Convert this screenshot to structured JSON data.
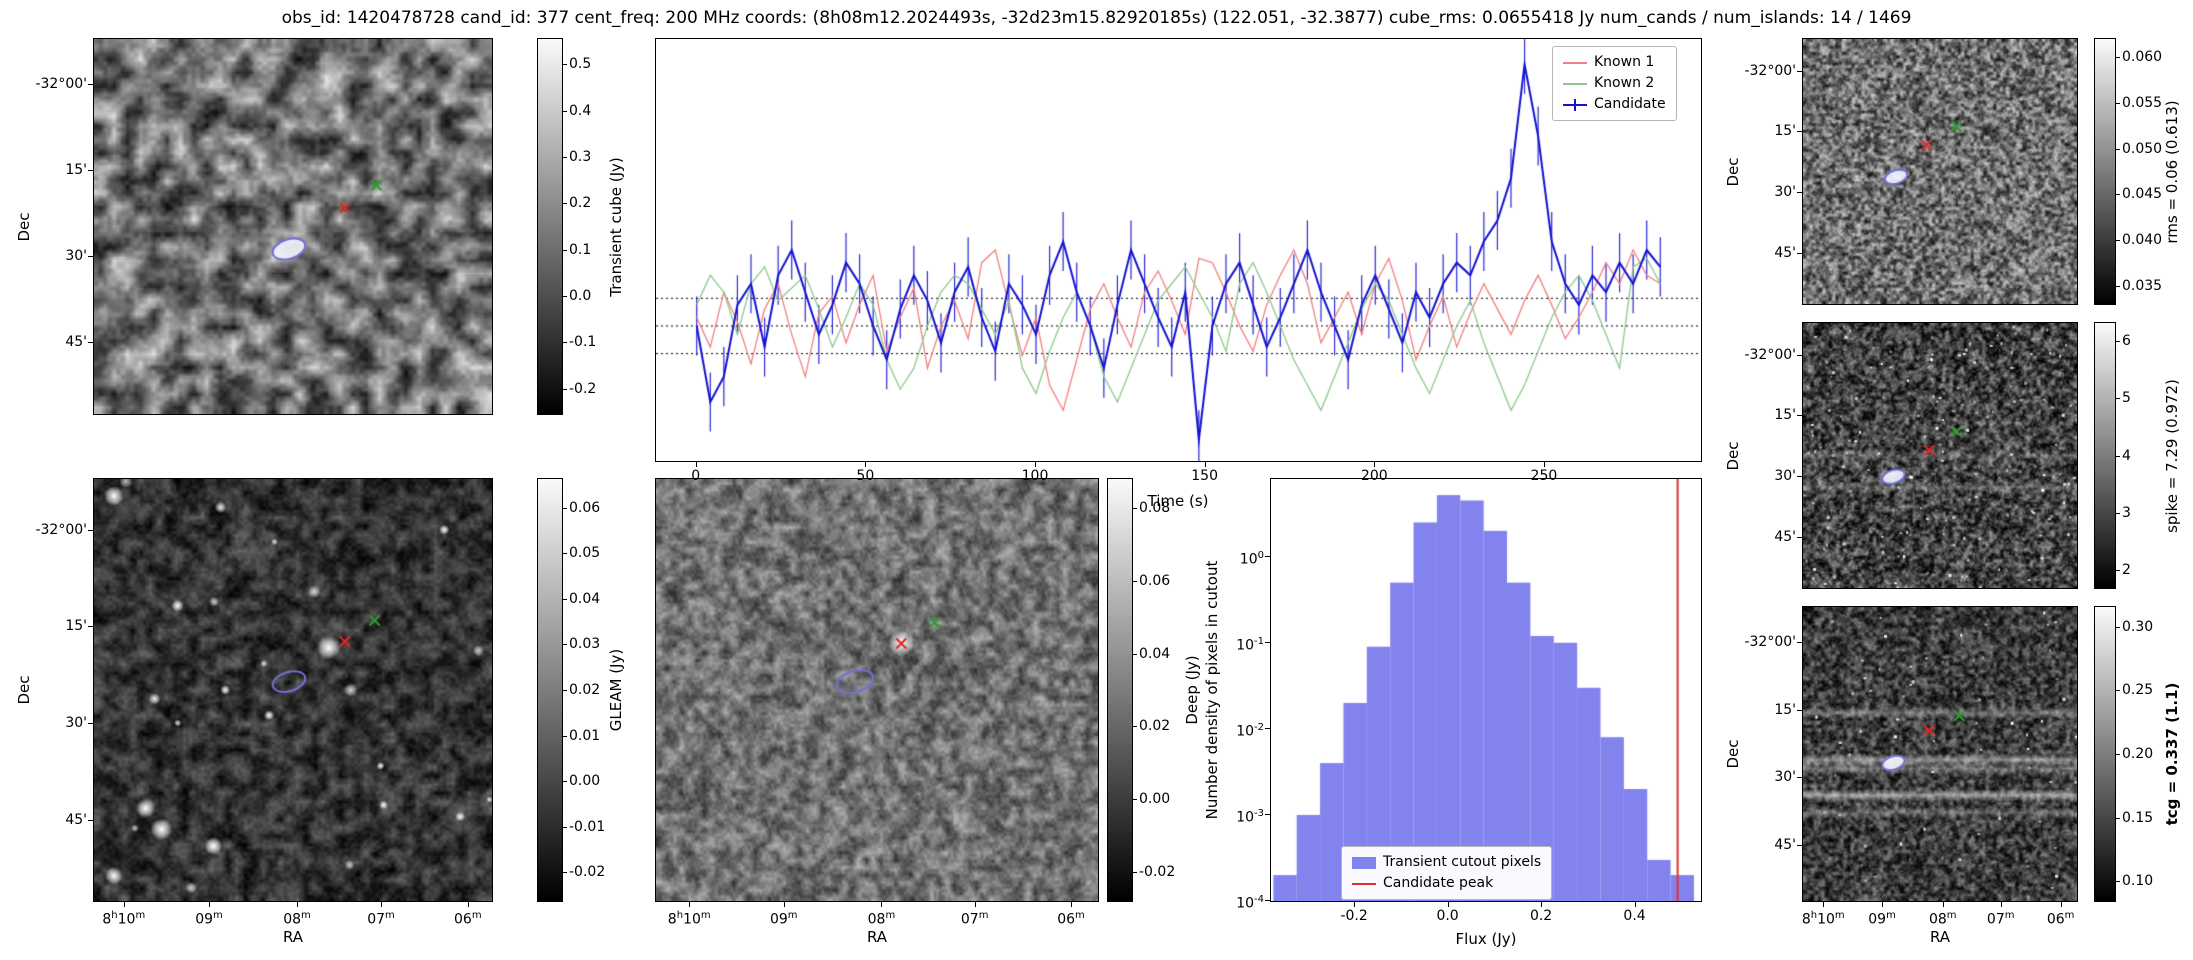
{
  "title": "obs_id: 1420478728 cand_id: 377 cent_freq: 200 MHz coords: (8h08m12.2024493s, -32d23m15.82920185s) (122.051, -32.3877) cube_rms: 0.0655418 Jy num_cands / num_islands: 14 / 1469",
  "axes": {
    "dec_label": "Dec",
    "ra_label": "RA",
    "dec_ticks": [
      "-32°00'",
      "15'",
      "30'",
      "45'"
    ],
    "ra_ticks": [
      "8^h10^m",
      "09^m",
      "08^m",
      "07^m",
      "06^m"
    ]
  },
  "panels": {
    "transient": {
      "colorbar_label": "Transient cube (Jy)",
      "colorbar_ticks": [
        "0.5",
        "0.4",
        "0.3",
        "0.2",
        "0.1",
        "0.0",
        "-0.1",
        "-0.2"
      ],
      "markers": {
        "red_cross": [
          0.63,
          0.45
        ],
        "green_cross": [
          0.71,
          0.39
        ],
        "ellipse": [
          0.49,
          0.56
        ]
      }
    },
    "gleam": {
      "colorbar_label": "GLEAM (Jy)",
      "colorbar_ticks": [
        "0.06",
        "0.05",
        "0.04",
        "0.03",
        "0.02",
        "0.01",
        "0.00",
        "-0.01",
        "-0.02"
      ],
      "markers": {
        "red_cross": [
          0.63,
          0.385
        ],
        "green_cross": [
          0.705,
          0.335
        ],
        "ellipse": [
          0.49,
          0.48
        ]
      }
    },
    "deep": {
      "colorbar_label": "Deep (Jy)",
      "colorbar_ticks": [
        "0.08",
        "0.06",
        "0.04",
        "0.02",
        "0.00",
        "-0.02"
      ],
      "markers": {
        "red_cross": [
          0.555,
          0.39
        ],
        "green_cross": [
          0.63,
          0.34
        ],
        "ellipse": [
          0.45,
          0.48
        ]
      }
    },
    "rms": {
      "colorbar_label": "rms = 0.06 (0.613)",
      "colorbar_ticks": [
        "0.060",
        "0.055",
        "0.050",
        "0.045",
        "0.040",
        "0.035"
      ],
      "markers": {
        "red_cross": [
          0.45,
          0.4
        ],
        "green_cross": [
          0.56,
          0.33
        ],
        "ellipse": [
          0.34,
          0.52
        ]
      }
    },
    "spike": {
      "colorbar_label": "spike = 7.29 (0.972)",
      "colorbar_ticks": [
        "6",
        "5",
        "4",
        "3",
        "2"
      ],
      "markers": {
        "red_cross": [
          0.46,
          0.48
        ],
        "green_cross": [
          0.56,
          0.41
        ],
        "ellipse": [
          0.33,
          0.58
        ]
      }
    },
    "tcg": {
      "colorbar_label": "tcg = 0.337 (1.1)",
      "bold": true,
      "colorbar_ticks": [
        "0.30",
        "0.25",
        "0.20",
        "0.15",
        "0.10"
      ],
      "markers": {
        "red_cross": [
          0.46,
          0.42
        ],
        "green_cross": [
          0.57,
          0.37
        ],
        "ellipse": [
          0.33,
          0.53
        ]
      }
    }
  },
  "chart_data": [
    {
      "type": "line",
      "title": "",
      "xlabel": "Time (s)",
      "ylabel": "",
      "xlim": [
        -12,
        296
      ],
      "ylim": [
        -0.32,
        0.68
      ],
      "xticks": [
        0,
        50,
        100,
        150,
        200,
        250
      ],
      "hlines": [
        0.0655,
        0.0,
        -0.0655
      ],
      "legend_position": "upper right",
      "x": [
        0,
        4,
        8,
        12,
        16,
        20,
        24,
        28,
        32,
        36,
        40,
        44,
        48,
        52,
        56,
        60,
        64,
        68,
        72,
        76,
        80,
        84,
        88,
        92,
        96,
        100,
        104,
        108,
        112,
        116,
        120,
        124,
        128,
        132,
        136,
        140,
        144,
        148,
        152,
        156,
        160,
        164,
        168,
        172,
        176,
        180,
        184,
        188,
        192,
        196,
        200,
        204,
        208,
        212,
        216,
        220,
        224,
        228,
        232,
        236,
        240,
        244,
        248,
        252,
        256,
        260,
        264,
        268,
        272,
        276,
        280,
        284
      ],
      "series": [
        {
          "name": "Known 1",
          "color": "#f28080",
          "values": [
            0.02,
            -0.05,
            0.08,
            0.01,
            -0.09,
            0.04,
            0.1,
            -0.02,
            -0.12,
            0.03,
            0.07,
            -0.04,
            0.05,
            0.12,
            -0.06,
            0.02,
            0.09,
            -0.1,
            0.0,
            0.06,
            -0.03,
            0.15,
            0.18,
            0.05,
            -0.07,
            0.02,
            -0.14,
            -0.2,
            -0.08,
            0.04,
            0.1,
            0.02,
            -0.05,
            0.08,
            0.13,
            0.06,
            -0.02,
            0.16,
            0.15,
            0.08,
            0.0,
            -0.06,
            0.05,
            0.12,
            0.18,
            0.1,
            -0.04,
            0.02,
            0.08,
            -0.02,
            0.1,
            0.16,
            0.06,
            -0.08,
            0.0,
            0.07,
            -0.05,
            0.03,
            0.1,
            0.04,
            -0.02,
            0.06,
            0.12,
            0.05,
            -0.03,
            0.02,
            0.08,
            0.15,
            0.1,
            0.18,
            0.12,
            0.1
          ]
        },
        {
          "name": "Known 2",
          "color": "#8fc98f",
          "values": [
            0.05,
            0.12,
            0.08,
            -0.02,
            0.1,
            0.14,
            0.06,
            0.09,
            0.12,
            0.04,
            -0.05,
            0.02,
            0.1,
            0.05,
            -0.08,
            -0.15,
            -0.1,
            0.0,
            0.08,
            0.12,
            0.1,
            0.04,
            -0.02,
            0.06,
            -0.1,
            -0.16,
            -0.06,
            0.02,
            0.08,
            0.0,
            -0.12,
            -0.18,
            -0.1,
            -0.02,
            0.06,
            0.1,
            0.14,
            0.08,
            0.02,
            -0.06,
            0.1,
            0.15,
            0.08,
            0.0,
            -0.08,
            -0.14,
            -0.2,
            -0.12,
            -0.04,
            0.04,
            0.1,
            0.06,
            -0.02,
            -0.1,
            -0.16,
            -0.08,
            0.0,
            0.06,
            -0.04,
            -0.12,
            -0.2,
            -0.14,
            -0.06,
            0.02,
            0.08,
            0.12,
            0.06,
            -0.02,
            -0.1,
            0.14,
            0.16,
            0.1
          ]
        },
        {
          "name": "Candidate",
          "color": "#1212cf",
          "yerr": 0.07,
          "values": [
            0.0,
            -0.18,
            -0.12,
            0.05,
            0.1,
            -0.05,
            0.12,
            0.18,
            0.08,
            -0.02,
            0.05,
            0.15,
            0.1,
            0.0,
            -0.08,
            0.04,
            0.12,
            0.06,
            -0.04,
            0.08,
            0.14,
            0.02,
            -0.06,
            0.1,
            0.05,
            -0.02,
            0.12,
            0.2,
            0.08,
            0.0,
            -0.1,
            0.05,
            0.18,
            0.1,
            0.02,
            -0.05,
            0.08,
            -0.27,
            0.0,
            0.1,
            0.15,
            0.05,
            -0.05,
            0.02,
            0.1,
            0.18,
            0.08,
            0.0,
            -0.08,
            0.05,
            0.12,
            0.04,
            -0.04,
            0.08,
            0.02,
            0.1,
            0.15,
            0.12,
            0.2,
            0.25,
            0.35,
            0.62,
            0.45,
            0.2,
            0.1,
            0.05,
            0.12,
            0.08,
            0.15,
            0.1,
            0.18,
            0.14
          ]
        }
      ]
    },
    {
      "type": "bar",
      "title": "",
      "xlabel": "Flux (Jy)",
      "ylabel": "Number density of pixels in cutout",
      "yscale": "log",
      "xlim": [
        -0.38,
        0.54
      ],
      "ylim": [
        0.0001,
        8
      ],
      "xticks": [
        {
          "label": "-0.2",
          "value": -0.2
        },
        {
          "label": "0.0",
          "value": 0.0
        },
        {
          "label": "0.2",
          "value": 0.2
        },
        {
          "label": "0.4",
          "value": 0.4
        }
      ],
      "yticks": [
        {
          "label": "10^0",
          "value": 1
        },
        {
          "label": "10^-1",
          "value": 0.1
        },
        {
          "label": "10^-2",
          "value": 0.01
        },
        {
          "label": "10^-3",
          "value": 0.001
        },
        {
          "label": "10^-4",
          "value": 0.0001
        }
      ],
      "bin_start": -0.375,
      "bin_width": 0.05,
      "values": [
        0.0002,
        0.001,
        0.004,
        0.02,
        0.09,
        0.5,
        2.5,
        5.2,
        4.5,
        2.0,
        0.5,
        0.12,
        0.1,
        0.03,
        0.008,
        0.002,
        0.0003,
        0.0002
      ],
      "bar_color": "#8383ee",
      "candidate_peak": 0.49,
      "peak_color": "#e03030",
      "legend": [
        {
          "label": "Transient cutout pixels",
          "color": "#8383ee",
          "type": "patch"
        },
        {
          "label": "Candidate peak",
          "color": "#e03030",
          "type": "line"
        }
      ]
    }
  ],
  "marker_colors": {
    "red_cross": "#e02828",
    "green_cross": "#2ca02c",
    "ellipse": "#7070d8"
  }
}
